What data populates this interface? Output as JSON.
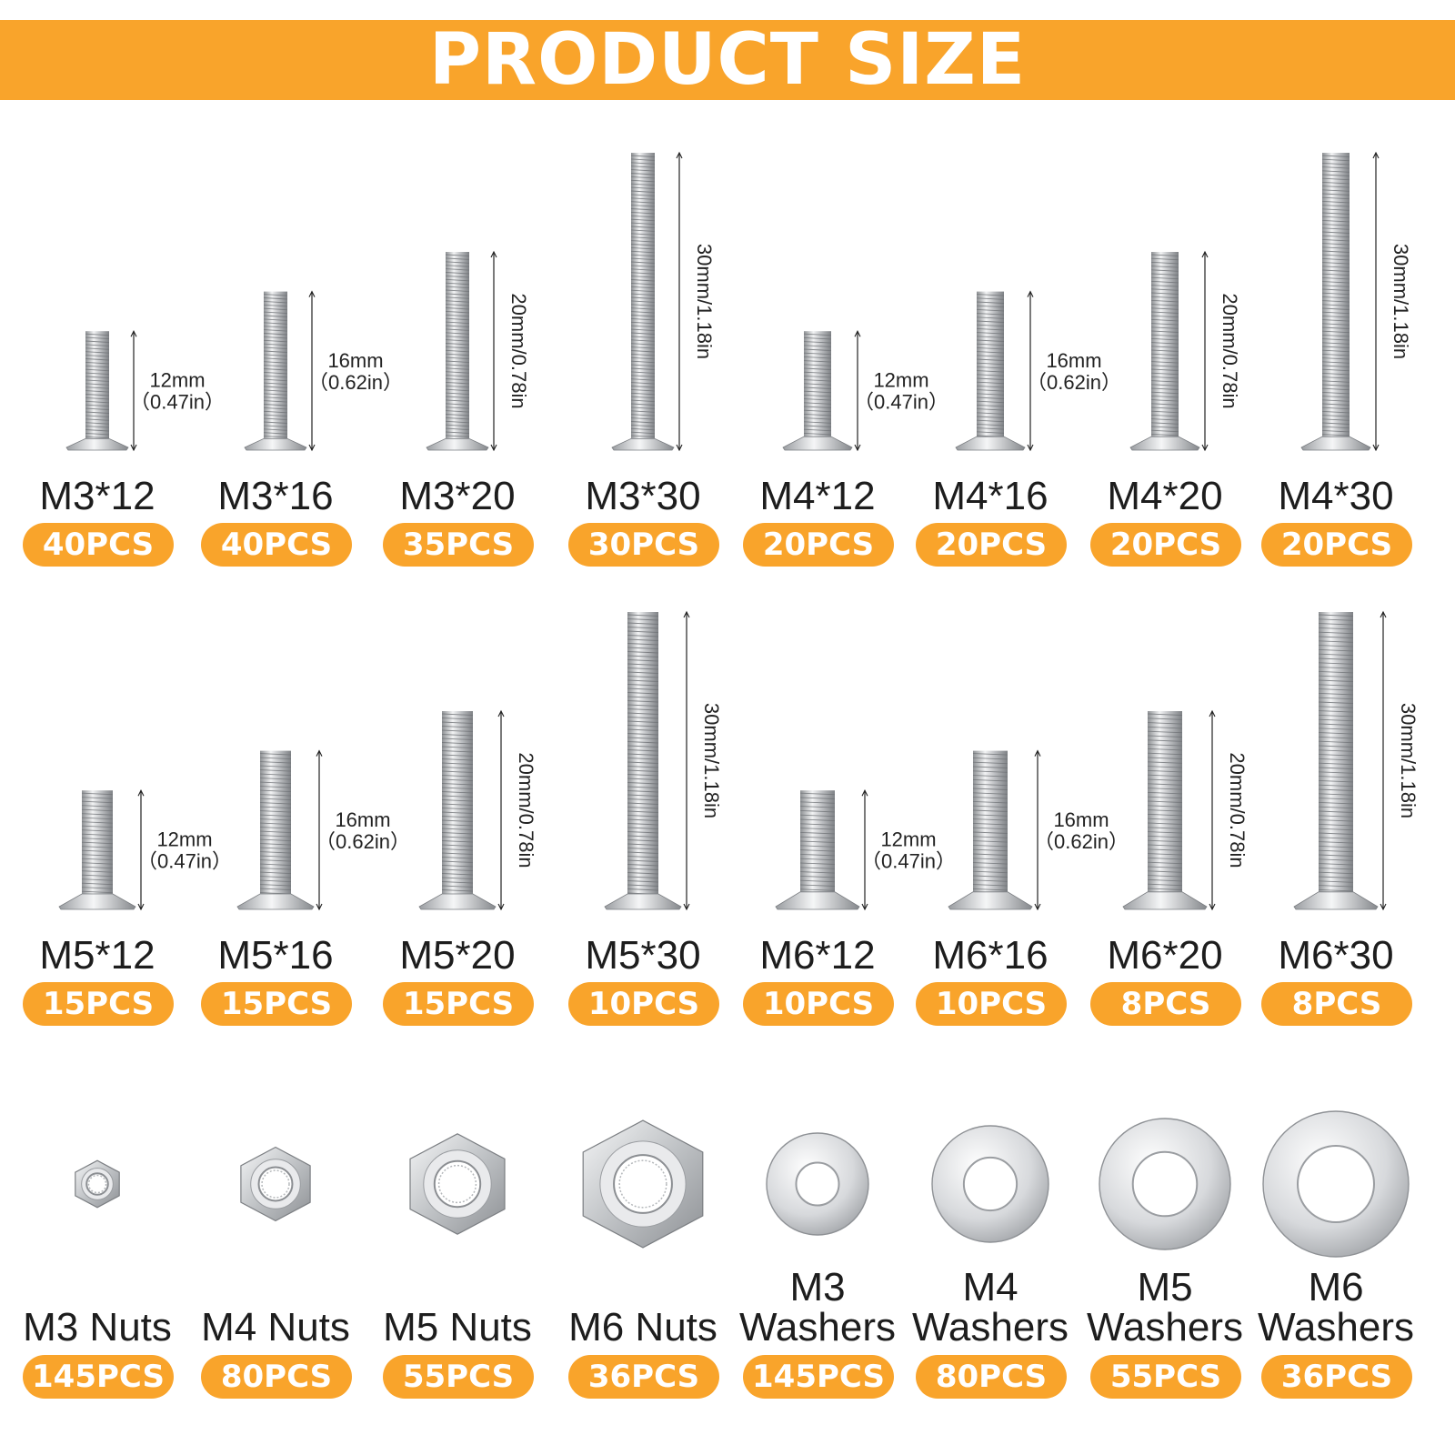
{
  "title": "PRODUCT SIZE",
  "colors": {
    "accent": "#f9a42b",
    "metal": "#c7c9cc"
  },
  "screws": [
    {
      "name": "M3*12",
      "qty": "40PCS",
      "dim_mm": "12mm",
      "dim_in": "（0.47in）",
      "dim": "",
      "size": 3,
      "length": 12
    },
    {
      "name": "M3*16",
      "qty": "40PCS",
      "dim_mm": "16mm",
      "dim_in": "（0.62in）",
      "dim": "",
      "size": 3,
      "length": 16
    },
    {
      "name": "M3*20",
      "qty": "35PCS",
      "dim_mm": "",
      "dim_in": "",
      "dim": "20mm/0.78in",
      "size": 3,
      "length": 20
    },
    {
      "name": "M3*30",
      "qty": "30PCS",
      "dim_mm": "",
      "dim_in": "",
      "dim": "30mm/1.18in",
      "size": 3,
      "length": 30
    },
    {
      "name": "M4*12",
      "qty": "20PCS",
      "dim_mm": "12mm",
      "dim_in": "（0.47in）",
      "dim": "",
      "size": 4,
      "length": 12
    },
    {
      "name": "M4*16",
      "qty": "20PCS",
      "dim_mm": "16mm",
      "dim_in": "（0.62in）",
      "dim": "",
      "size": 4,
      "length": 16
    },
    {
      "name": "M4*20",
      "qty": "20PCS",
      "dim_mm": "",
      "dim_in": "",
      "dim": "20mm/0.78in",
      "size": 4,
      "length": 20
    },
    {
      "name": "M4*30",
      "qty": "20PCS",
      "dim_mm": "",
      "dim_in": "",
      "dim": "30mm/1.18in",
      "size": 4,
      "length": 30
    },
    {
      "name": "M5*12",
      "qty": "15PCS",
      "dim_mm": "12mm",
      "dim_in": "（0.47in）",
      "dim": "",
      "size": 5,
      "length": 12
    },
    {
      "name": "M5*16",
      "qty": "15PCS",
      "dim_mm": "16mm",
      "dim_in": "（0.62in）",
      "dim": "",
      "size": 5,
      "length": 16
    },
    {
      "name": "M5*20",
      "qty": "15PCS",
      "dim_mm": "",
      "dim_in": "",
      "dim": "20mm/0.78in",
      "size": 5,
      "length": 20
    },
    {
      "name": "M5*30",
      "qty": "10PCS",
      "dim_mm": "",
      "dim_in": "",
      "dim": "30mm/1.18in",
      "size": 5,
      "length": 30
    },
    {
      "name": "M6*12",
      "qty": "10PCS",
      "dim_mm": "12mm",
      "dim_in": "（0.47in）",
      "dim": "",
      "size": 6,
      "length": 12
    },
    {
      "name": "M6*16",
      "qty": "10PCS",
      "dim_mm": "16mm",
      "dim_in": "（0.62in）",
      "dim": "",
      "size": 6,
      "length": 16
    },
    {
      "name": "M6*20",
      "qty": "8PCS",
      "dim_mm": "",
      "dim_in": "",
      "dim": "20mm/0.78in",
      "size": 6,
      "length": 20
    },
    {
      "name": "M6*30",
      "qty": "8PCS",
      "dim_mm": "",
      "dim_in": "",
      "dim": "30mm/1.18in",
      "size": 6,
      "length": 30
    }
  ],
  "hardware": [
    {
      "type": "nut",
      "line1": "",
      "line2": "M3 Nuts",
      "qty": "145PCS",
      "size": 3
    },
    {
      "type": "nut",
      "line1": "",
      "line2": "M4 Nuts",
      "qty": "80PCS",
      "size": 4
    },
    {
      "type": "nut",
      "line1": "",
      "line2": "M5 Nuts",
      "qty": "55PCS",
      "size": 5
    },
    {
      "type": "nut",
      "line1": "",
      "line2": "M6 Nuts",
      "qty": "36PCS",
      "size": 6
    },
    {
      "type": "washer",
      "line1": "M3",
      "line2": "Washers",
      "qty": "145PCS",
      "size": 3
    },
    {
      "type": "washer",
      "line1": "M4",
      "line2": "Washers",
      "qty": "80PCS",
      "size": 4
    },
    {
      "type": "washer",
      "line1": "M5",
      "line2": "Washers",
      "qty": "55PCS",
      "size": 5
    },
    {
      "type": "washer",
      "line1": "M6",
      "line2": "Washers",
      "qty": "36PCS",
      "size": 6
    }
  ]
}
